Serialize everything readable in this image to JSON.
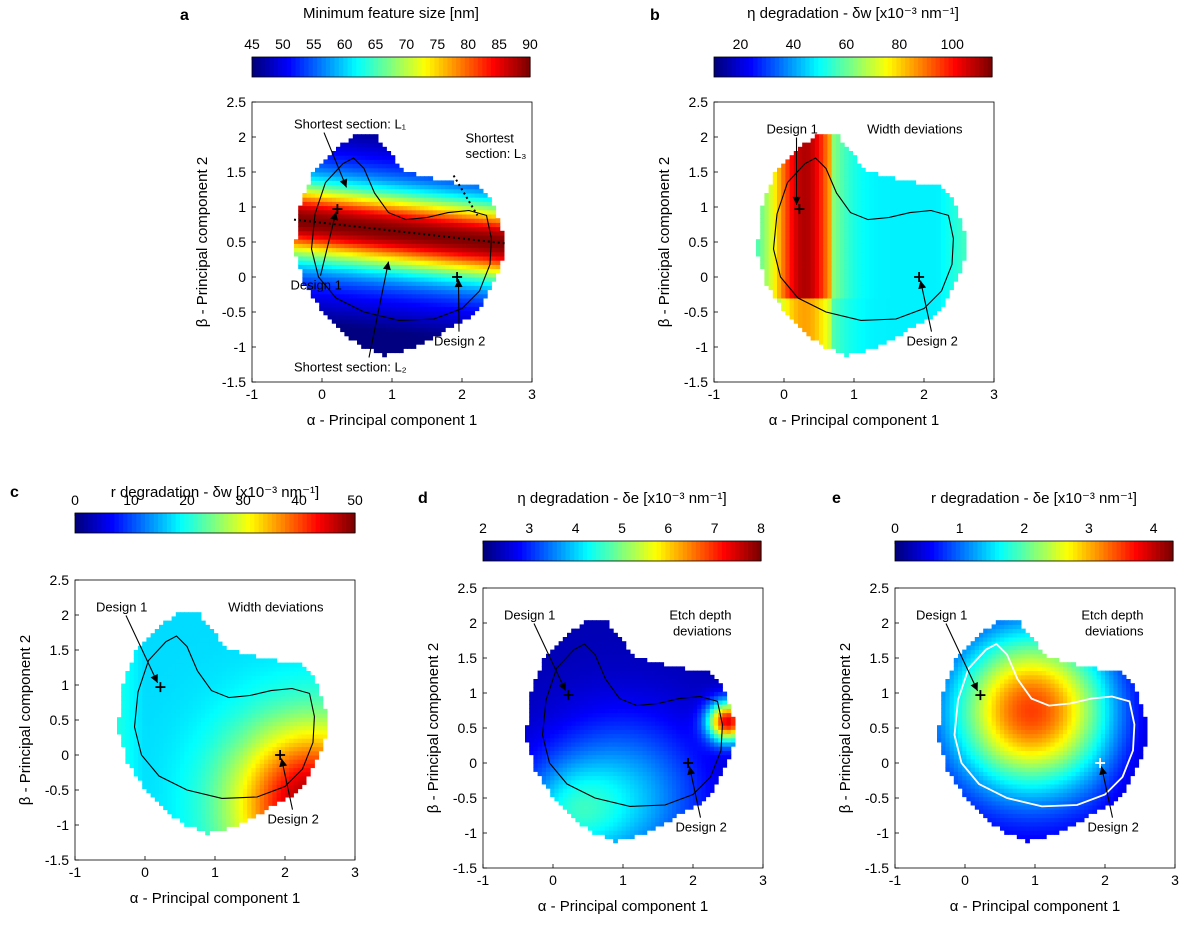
{
  "chart_data": [
    {
      "type": "heatmap",
      "panel_label": "a",
      "colorbar_title": "Minimum feature size [nm]",
      "colorbar_ticks": [
        "45",
        "50",
        "55",
        "60",
        "65",
        "70",
        "75",
        "80",
        "85",
        "90"
      ],
      "colorbar_range": [
        45,
        90
      ],
      "xlabel": "α - Principal component 1",
      "ylabel": "β - Principal component 2",
      "xlim": [
        -1,
        3
      ],
      "ylim": [
        -1.5,
        2.5
      ],
      "xticks": [
        "-1",
        "0",
        "1",
        "2",
        "3"
      ],
      "yticks": [
        "-1.5",
        "-1",
        "-0.5",
        "0",
        "0.5",
        "1",
        "1.5",
        "2",
        "2.5"
      ],
      "region_inset": "",
      "contour_color": "#000000",
      "annotations": [
        {
          "text": "Shortest section: L₁",
          "x": -0.4,
          "y": 2.12,
          "target": [
            0.35,
            1.28
          ]
        },
        {
          "text": "Shortest",
          "x": 2.05,
          "y": 1.92,
          "target": null
        },
        {
          "text": "section: L₃",
          "x": 2.05,
          "y": 1.7,
          "target": null
        },
        {
          "text": "Design 1",
          "x": -0.45,
          "y": -0.18,
          "target": [
            0.2,
            0.93
          ]
        },
        {
          "text": "Design 2",
          "x": 1.6,
          "y": -0.98,
          "target": [
            1.95,
            -0.03
          ]
        },
        {
          "text": "Shortest section: L₂",
          "x": -0.4,
          "y": -1.35,
          "target": [
            0.95,
            0.22
          ]
        }
      ],
      "markers": [
        {
          "name": "Design 1",
          "x": 0.22,
          "y": 0.97
        },
        {
          "name": "Design 2",
          "x": 1.93,
          "y": 0.0
        }
      ],
      "lines": [
        {
          "style": "dotted",
          "points": [
            [
              -0.4,
              0.82
            ],
            [
              2.62,
              0.48
            ]
          ]
        },
        {
          "style": "dotted",
          "points": [
            [
              1.88,
              1.45
            ],
            [
              2.22,
              0.88
            ]
          ]
        }
      ],
      "field": {
        "model": "linear",
        "base": 60,
        "gx": 0,
        "gy": 0,
        "peak": {
          "x": 1.0,
          "y": 0.65,
          "amp": 30,
          "sx": 10,
          "sy": 0.5
        }
      }
    },
    {
      "type": "heatmap",
      "panel_label": "b",
      "colorbar_title": "η degradation - δw [x10⁻³ nm⁻¹]",
      "colorbar_ticks": [
        "20",
        "40",
        "60",
        "80",
        "100"
      ],
      "colorbar_range": [
        10,
        115
      ],
      "xlabel": "α - Principal component 1",
      "ylabel": "β - Principal component 2",
      "xlim": [
        -1,
        3
      ],
      "ylim": [
        -1.5,
        2.5
      ],
      "xticks": [
        "-1",
        "0",
        "1",
        "2",
        "3"
      ],
      "yticks": [
        "-1.5",
        "-1",
        "-0.5",
        "0",
        "0.5",
        "1",
        "1.5",
        "2",
        "2.5"
      ],
      "region_inset": "Width deviations",
      "contour_color": "#000000",
      "annotations": [
        {
          "text": "Design 1",
          "x": -0.25,
          "y": 2.05,
          "target": [
            0.18,
            1.03
          ]
        },
        {
          "text": "Design 2",
          "x": 1.75,
          "y": -0.98,
          "target": [
            1.95,
            -0.05
          ]
        }
      ],
      "markers": [
        {
          "name": "Design 1",
          "x": 0.22,
          "y": 0.97
        },
        {
          "name": "Design 2",
          "x": 1.93,
          "y": 0.0
        }
      ],
      "lines": [],
      "field": {
        "model": "left_ridge",
        "base": 48,
        "amp": 62,
        "x0": 0.3,
        "s": 0.35
      }
    },
    {
      "type": "heatmap",
      "panel_label": "c",
      "colorbar_title": "r degradation - δw [x10⁻³ nm⁻¹]",
      "colorbar_ticks": [
        "0",
        "10",
        "20",
        "30",
        "40",
        "50"
      ],
      "colorbar_range": [
        0,
        50
      ],
      "xlabel": "α - Principal component 1",
      "ylabel": "β - Principal component 2",
      "xlim": [
        -1,
        3
      ],
      "ylim": [
        -1.5,
        2.5
      ],
      "xticks": [
        "-1",
        "0",
        "1",
        "2",
        "3"
      ],
      "yticks": [
        "-1.5",
        "-1",
        "-0.5",
        "0",
        "0.5",
        "1",
        "1.5",
        "2",
        "2.5"
      ],
      "region_inset": "Width deviations",
      "contour_color": "#000000",
      "annotations": [
        {
          "text": "Design 1",
          "x": -0.7,
          "y": 2.05,
          "target": [
            0.18,
            1.03
          ]
        },
        {
          "text": "Design 2",
          "x": 1.75,
          "y": -0.98,
          "target": [
            1.95,
            -0.05
          ]
        }
      ],
      "markers": [
        {
          "name": "Design 1",
          "x": 0.22,
          "y": 0.97
        },
        {
          "name": "Design 2",
          "x": 1.93,
          "y": 0.0
        }
      ],
      "lines": [],
      "field": {
        "model": "corner_lr",
        "base": 17,
        "amp": 32,
        "x0": 2.4,
        "y0": -0.7,
        "s": 0.8
      }
    },
    {
      "type": "heatmap",
      "panel_label": "d",
      "colorbar_title": "η degradation - δe [x10⁻³ nm⁻¹]",
      "colorbar_ticks": [
        "2",
        "3",
        "4",
        "5",
        "6",
        "7",
        "8"
      ],
      "colorbar_range": [
        2,
        8
      ],
      "xlabel": "α - Principal component 1",
      "ylabel": "β - Principal component 2",
      "xlim": [
        -1,
        3
      ],
      "ylim": [
        -1.5,
        2.5
      ],
      "xticks": [
        "-1",
        "0",
        "1",
        "2",
        "3"
      ],
      "yticks": [
        "-1.5",
        "-1",
        "-0.5",
        "0",
        "0.5",
        "1",
        "1.5",
        "2",
        "2.5"
      ],
      "region_inset": "Etch depth deviations",
      "contour_color": "#000000",
      "annotations": [
        {
          "text": "Design 1",
          "x": -0.7,
          "y": 2.05,
          "target": [
            0.18,
            1.03
          ]
        },
        {
          "text": "Design 2",
          "x": 1.75,
          "y": -0.98,
          "target": [
            1.95,
            -0.05
          ]
        }
      ],
      "markers": [
        {
          "name": "Design 1",
          "x": 0.22,
          "y": 0.97
        },
        {
          "name": "Design 2",
          "x": 1.93,
          "y": 0.0
        }
      ],
      "lines": [],
      "field": {
        "model": "d_panel",
        "base": 3.0
      }
    },
    {
      "type": "heatmap",
      "panel_label": "e",
      "colorbar_title": "r degradation - δe [x10⁻³ nm⁻¹]",
      "colorbar_ticks": [
        "0",
        "1",
        "2",
        "3",
        "4"
      ],
      "colorbar_range": [
        0,
        4.3
      ],
      "xlabel": "α - Principal component 1",
      "ylabel": "β - Principal component 2",
      "xlim": [
        -1,
        3
      ],
      "ylim": [
        -1.5,
        2.5
      ],
      "xticks": [
        "-1",
        "0",
        "1",
        "2",
        "3"
      ],
      "yticks": [
        "-1.5",
        "-1",
        "-0.5",
        "0",
        "0.5",
        "1",
        "1.5",
        "2",
        "2.5"
      ],
      "region_inset": "Etch depth deviations",
      "contour_color": "#ffffff",
      "annotations": [
        {
          "text": "Design 1",
          "x": -0.7,
          "y": 2.05,
          "target": [
            0.18,
            1.03
          ]
        },
        {
          "text": "Design 2",
          "x": 1.75,
          "y": -0.98,
          "target": [
            1.95,
            -0.05
          ]
        }
      ],
      "markers": [
        {
          "name": "Design 1",
          "x": 0.22,
          "y": 0.97
        },
        {
          "name": "Design 2",
          "x": 1.93,
          "y": 0.0
        }
      ],
      "lines": [],
      "field": {
        "model": "e_panel",
        "base": 0.3,
        "amp": 3.2,
        "x0": 0.95,
        "y0": 0.75,
        "s": 0.8
      }
    }
  ]
}
